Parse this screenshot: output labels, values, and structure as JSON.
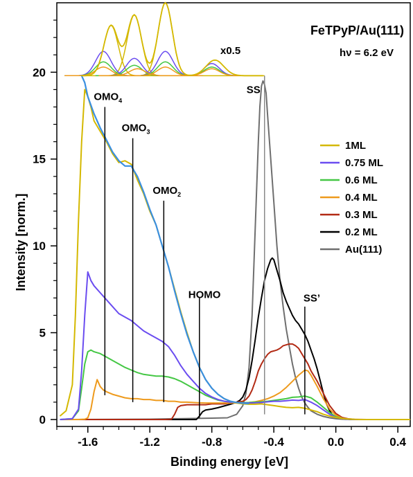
{
  "chart_data": {
    "type": "line",
    "title": "FeTPyP/Au(111)",
    "subtitle": "hν = 6.2 eV",
    "xlabel": "Binding energy [eV]",
    "ylabel": "Intensity [norm.]",
    "xlim": [
      -1.8,
      0.48
    ],
    "ylim": [
      -0.4,
      24.0
    ],
    "x_ticks": [
      "-1.6",
      "-1.2",
      "-0.8",
      "-0.4",
      "0.0",
      "0.4"
    ],
    "x_tick_values": [
      -1.6,
      -1.2,
      -0.8,
      -0.4,
      0.0,
      0.4
    ],
    "y_ticks": [
      "0",
      "5",
      "10",
      "15",
      "20"
    ],
    "y_tick_values": [
      0,
      5,
      10,
      15,
      20
    ],
    "grid": false,
    "legend_position": "right",
    "series": [
      {
        "name": "1ML",
        "color": "#d4b800",
        "x": [
          -1.78,
          -1.74,
          -1.7,
          -1.68,
          -1.66,
          -1.64,
          -1.62,
          -1.6,
          -1.58,
          -1.56,
          -1.52,
          -1.48,
          -1.44,
          -1.4,
          -1.36,
          -1.32,
          -1.28,
          -1.24,
          -1.2,
          -1.16,
          -1.12,
          -1.08,
          -1.04,
          -1.0,
          -0.96,
          -0.92,
          -0.88,
          -0.84,
          -0.8,
          -0.76,
          -0.72,
          -0.68,
          -0.64,
          -0.6,
          -0.56,
          -0.52,
          -0.48,
          -0.44,
          -0.4,
          -0.36,
          -0.32,
          -0.28,
          -0.24,
          -0.2,
          -0.16,
          -0.12,
          -0.08,
          -0.04,
          0.0,
          0.04,
          0.08,
          0.12,
          0.16,
          0.2,
          0.3,
          0.4,
          0.48
        ],
        "y": [
          0.2,
          0.5,
          2.0,
          6.0,
          11.5,
          16.0,
          19.0,
          18.6,
          18.0,
          17.2,
          16.6,
          16.0,
          15.3,
          14.8,
          14.9,
          14.7,
          13.8,
          13.0,
          12.0,
          11.2,
          10.0,
          8.8,
          7.5,
          6.2,
          5.0,
          3.9,
          3.0,
          2.3,
          1.8,
          1.45,
          1.2,
          1.05,
          0.95,
          0.9,
          0.88,
          0.88,
          0.9,
          0.85,
          0.8,
          0.75,
          0.7,
          0.68,
          0.7,
          0.65,
          0.55,
          0.45,
          0.3,
          0.2,
          0.12,
          0.06,
          0.03,
          0.01,
          0.0,
          0.0,
          0.0,
          0.0,
          0.0
        ]
      },
      {
        "name": "0.75 ML",
        "color": "#6a4cf0",
        "x": [
          -1.78,
          -1.7,
          -1.66,
          -1.64,
          -1.62,
          -1.6,
          -1.58,
          -1.56,
          -1.52,
          -1.48,
          -1.44,
          -1.4,
          -1.36,
          -1.32,
          -1.28,
          -1.24,
          -1.2,
          -1.16,
          -1.12,
          -1.08,
          -1.04,
          -1.0,
          -0.96,
          -0.92,
          -0.88,
          -0.84,
          -0.8,
          -0.76,
          -0.72,
          -0.68,
          -0.64,
          -0.6,
          -0.56,
          -0.52,
          -0.48,
          -0.44,
          -0.4,
          -0.36,
          -0.32,
          -0.28,
          -0.24,
          -0.2,
          -0.16,
          -0.12,
          -0.08,
          -0.04,
          0.0,
          0.04,
          0.08,
          0.12,
          0.2,
          0.3,
          0.4,
          0.48
        ],
        "y": [
          0.0,
          0.05,
          0.6,
          2.8,
          6.0,
          8.5,
          8.0,
          7.7,
          7.3,
          6.9,
          6.5,
          6.1,
          5.9,
          5.7,
          5.4,
          5.1,
          4.9,
          4.7,
          4.5,
          4.2,
          3.7,
          3.1,
          2.6,
          2.2,
          1.8,
          1.5,
          1.3,
          1.15,
          1.05,
          1.0,
          0.97,
          0.95,
          0.95,
          0.96,
          0.98,
          1.02,
          1.05,
          1.05,
          1.08,
          1.12,
          1.1,
          1.15,
          1.0,
          0.8,
          0.55,
          0.3,
          0.12,
          0.05,
          0.02,
          0.0,
          0.0,
          0.0,
          0.0,
          0.0
        ]
      },
      {
        "name": "0.6 ML",
        "color": "#44c744",
        "x": [
          -1.78,
          -1.7,
          -1.66,
          -1.64,
          -1.62,
          -1.6,
          -1.58,
          -1.56,
          -1.52,
          -1.48,
          -1.44,
          -1.4,
          -1.36,
          -1.32,
          -1.28,
          -1.24,
          -1.2,
          -1.16,
          -1.12,
          -1.08,
          -1.04,
          -1.0,
          -0.96,
          -0.92,
          -0.88,
          -0.84,
          -0.8,
          -0.76,
          -0.72,
          -0.68,
          -0.64,
          -0.6,
          -0.56,
          -0.52,
          -0.48,
          -0.44,
          -0.4,
          -0.36,
          -0.32,
          -0.28,
          -0.24,
          -0.2,
          -0.16,
          -0.12,
          -0.08,
          -0.04,
          0.0,
          0.04,
          0.08,
          0.12,
          0.2,
          0.3,
          0.4,
          0.48
        ],
        "y": [
          0.0,
          0.05,
          0.5,
          1.8,
          3.2,
          3.9,
          4.0,
          3.9,
          3.8,
          3.6,
          3.4,
          3.2,
          3.0,
          2.85,
          2.7,
          2.6,
          2.55,
          2.5,
          2.5,
          2.45,
          2.35,
          2.2,
          2.0,
          1.8,
          1.6,
          1.4,
          1.25,
          1.12,
          1.05,
          1.0,
          0.98,
          0.97,
          0.98,
          1.0,
          1.02,
          1.05,
          1.1,
          1.15,
          1.2,
          1.28,
          1.3,
          1.35,
          1.25,
          1.0,
          0.7,
          0.4,
          0.16,
          0.06,
          0.02,
          0.0,
          0.0,
          0.0,
          0.0,
          0.0
        ]
      },
      {
        "name": "0.4 ML",
        "color": "#ee9a1c",
        "x": [
          -1.78,
          -1.66,
          -1.62,
          -1.6,
          -1.58,
          -1.56,
          -1.54,
          -1.52,
          -1.5,
          -1.48,
          -1.44,
          -1.4,
          -1.36,
          -1.32,
          -1.28,
          -1.24,
          -1.2,
          -1.16,
          -1.12,
          -1.08,
          -1.04,
          -1.0,
          -0.96,
          -0.92,
          -0.88,
          -0.84,
          -0.8,
          -0.76,
          -0.72,
          -0.68,
          -0.64,
          -0.6,
          -0.56,
          -0.52,
          -0.48,
          -0.44,
          -0.4,
          -0.36,
          -0.32,
          -0.28,
          -0.24,
          -0.2,
          -0.18,
          -0.16,
          -0.12,
          -0.08,
          -0.04,
          0.0,
          0.04,
          0.08,
          0.12,
          0.2,
          0.3,
          0.4,
          0.48
        ],
        "y": [
          0.0,
          0.0,
          0.02,
          0.1,
          0.6,
          1.6,
          2.3,
          1.9,
          1.7,
          1.6,
          1.45,
          1.35,
          1.25,
          1.2,
          1.2,
          1.15,
          1.15,
          1.1,
          1.1,
          1.05,
          1.05,
          1.0,
          1.0,
          0.98,
          0.96,
          0.95,
          0.95,
          0.95,
          0.95,
          0.95,
          0.95,
          0.96,
          0.98,
          1.02,
          1.1,
          1.2,
          1.35,
          1.55,
          1.85,
          2.2,
          2.55,
          2.85,
          2.8,
          2.55,
          1.9,
          1.2,
          0.6,
          0.25,
          0.08,
          0.02,
          0.0,
          0.0,
          0.0,
          0.0,
          0.0
        ]
      },
      {
        "name": "0.3 ML",
        "color": "#b22a14",
        "x": [
          -1.78,
          -1.1,
          -1.06,
          -1.04,
          -1.02,
          -1.0,
          -0.96,
          -0.92,
          -0.88,
          -0.84,
          -0.8,
          -0.76,
          -0.72,
          -0.68,
          -0.64,
          -0.6,
          -0.58,
          -0.56,
          -0.54,
          -0.52,
          -0.5,
          -0.48,
          -0.46,
          -0.44,
          -0.42,
          -0.4,
          -0.38,
          -0.36,
          -0.34,
          -0.32,
          -0.3,
          -0.28,
          -0.26,
          -0.24,
          -0.22,
          -0.2,
          -0.18,
          -0.16,
          -0.12,
          -0.08,
          -0.04,
          0.0,
          0.04,
          0.08,
          0.12,
          0.2,
          0.3,
          0.4,
          0.48
        ],
        "y": [
          0.0,
          0.0,
          0.02,
          0.3,
          0.7,
          0.8,
          0.85,
          0.85,
          0.85,
          0.85,
          0.9,
          0.9,
          0.9,
          0.95,
          1.0,
          1.05,
          1.15,
          1.35,
          1.7,
          2.2,
          2.8,
          3.2,
          3.5,
          3.75,
          3.9,
          3.95,
          4.0,
          4.1,
          4.25,
          4.3,
          4.35,
          4.35,
          4.25,
          4.1,
          3.8,
          3.5,
          3.2,
          2.8,
          2.2,
          1.5,
          0.8,
          0.35,
          0.12,
          0.04,
          0.01,
          0.0,
          0.0,
          0.0,
          0.0
        ]
      },
      {
        "name": "0.2 ML",
        "color": "#000000",
        "x": [
          -1.78,
          -0.9,
          -0.88,
          -0.86,
          -0.84,
          -0.8,
          -0.76,
          -0.72,
          -0.68,
          -0.64,
          -0.62,
          -0.6,
          -0.58,
          -0.56,
          -0.54,
          -0.52,
          -0.5,
          -0.48,
          -0.46,
          -0.44,
          -0.42,
          -0.41,
          -0.4,
          -0.38,
          -0.36,
          -0.34,
          -0.32,
          -0.3,
          -0.28,
          -0.26,
          -0.24,
          -0.22,
          -0.2,
          -0.18,
          -0.16,
          -0.14,
          -0.12,
          -0.1,
          -0.08,
          -0.06,
          -0.04,
          -0.02,
          0.0,
          0.04,
          0.08,
          0.12,
          0.2,
          0.3,
          0.4,
          0.48
        ],
        "y": [
          0.0,
          0.0,
          0.2,
          0.45,
          0.55,
          0.6,
          0.68,
          0.78,
          0.88,
          1.0,
          1.1,
          1.3,
          1.7,
          2.4,
          3.4,
          4.6,
          5.9,
          7.0,
          8.0,
          8.7,
          9.2,
          9.3,
          9.2,
          8.6,
          8.0,
          7.3,
          6.8,
          6.4,
          6.0,
          5.7,
          5.5,
          5.2,
          4.9,
          4.5,
          4.0,
          3.5,
          2.9,
          2.2,
          1.5,
          0.9,
          0.5,
          0.25,
          0.12,
          0.05,
          0.02,
          0.0,
          0.0,
          0.0,
          0.0,
          0.0
        ]
      },
      {
        "name": "Au(111)",
        "color": "#6e6e6e",
        "x": [
          -1.78,
          -1.2,
          -1.0,
          -0.8,
          -0.7,
          -0.64,
          -0.6,
          -0.58,
          -0.56,
          -0.54,
          -0.52,
          -0.5,
          -0.49,
          -0.48,
          -0.47,
          -0.46,
          -0.45,
          -0.44,
          -0.42,
          -0.4,
          -0.38,
          -0.36,
          -0.34,
          -0.32,
          -0.3,
          -0.28,
          -0.26,
          -0.24,
          -0.22,
          -0.2,
          -0.18,
          -0.16,
          -0.12,
          -0.08,
          -0.04,
          0.0,
          0.04,
          0.1,
          0.2,
          0.3,
          0.4,
          0.48
        ],
        "y": [
          0.0,
          0.02,
          0.05,
          0.08,
          0.1,
          0.3,
          0.8,
          1.5,
          3.0,
          6.0,
          11.0,
          16.0,
          18.0,
          19.2,
          19.5,
          19.3,
          18.8,
          17.5,
          15.0,
          12.5,
          10.0,
          8.0,
          6.5,
          5.2,
          4.2,
          3.2,
          2.4,
          1.8,
          1.3,
          0.95,
          0.7,
          0.5,
          0.3,
          0.18,
          0.1,
          0.05,
          0.02,
          0.0,
          0.0,
          0.0,
          0.0,
          0.0
        ]
      }
    ],
    "fit_curve": {
      "color": "#3a8fe0",
      "x": [
        -1.64,
        -1.62,
        -1.6,
        -1.56,
        -1.52,
        -1.48,
        -1.44,
        -1.4,
        -1.36,
        -1.32,
        -1.28,
        -1.24,
        -1.2,
        -1.16,
        -1.12,
        -1.08,
        -1.04,
        -1.0,
        -0.96,
        -0.92,
        -0.88,
        -0.84,
        -0.8,
        -0.76,
        -0.72,
        -0.68,
        -0.64,
        -0.6,
        -0.56
      ],
      "y": [
        19.8,
        19.4,
        18.6,
        17.6,
        16.8,
        16.1,
        15.4,
        14.9,
        14.6,
        14.6,
        14.0,
        13.1,
        12.1,
        11.2,
        10.0,
        8.8,
        7.4,
        6.1,
        4.9,
        3.9,
        3.0,
        2.3,
        1.8,
        1.45,
        1.2,
        1.05,
        0.98,
        0.94,
        0.92
      ]
    },
    "inset_label": "x0.5",
    "inset_components": [
      {
        "color": "#d4b800",
        "centers": [
          -1.45,
          -1.3,
          -1.1
        ],
        "amplitudes": [
          2.9,
          3.5,
          4.2
        ],
        "width": 0.065,
        "envelope_color": "#d4b800",
        "envelope_amplitude": 3.0,
        "envelope_center": -0.78,
        "envelope_width": 0.08
      },
      {
        "color": "#6a4cf0",
        "centers": [
          -1.5,
          -1.3,
          -1.1,
          -0.8
        ],
        "amplitudes": [
          1.4,
          1.0,
          1.4,
          0.7
        ],
        "width": 0.07
      },
      {
        "color": "#44c744",
        "centers": [
          -1.5,
          -1.3,
          -1.1,
          -0.8
        ],
        "amplitudes": [
          0.8,
          0.6,
          0.8,
          0.5
        ],
        "width": 0.07
      },
      {
        "color": "#ee9a1c",
        "centers": [
          -1.5,
          -1.28,
          -1.1,
          -0.8
        ],
        "amplitudes": [
          0.5,
          0.4,
          0.5,
          0.4
        ],
        "width": 0.07
      }
    ],
    "inset_baseline": 19.8,
    "annotations": [
      {
        "text": "OMO",
        "sub": "4",
        "x": -1.49,
        "label_y": 18.4,
        "line_top": 18.0,
        "line_bottom": 1.4
      },
      {
        "text": "OMO",
        "sub": "3",
        "x": -1.31,
        "label_y": 16.6,
        "line_top": 16.2,
        "line_bottom": 1.0
      },
      {
        "text": "OMO",
        "sub": "2",
        "x": -1.11,
        "label_y": 13.0,
        "line_top": 12.6,
        "line_bottom": 1.0
      },
      {
        "text": "HOMO",
        "sub": "",
        "x": -0.88,
        "label_y": 7.0,
        "line_top": 7.0,
        "line_bottom": 0.1
      },
      {
        "text": "SS",
        "sub": "",
        "x": -0.46,
        "label_y": 18.8,
        "line_top": 19.8,
        "line_bottom": 0.3
      },
      {
        "text": "SS’",
        "sub": "",
        "x": -0.2,
        "label_y": 6.8,
        "line_top": 6.5,
        "line_bottom": 0.3
      }
    ]
  }
}
